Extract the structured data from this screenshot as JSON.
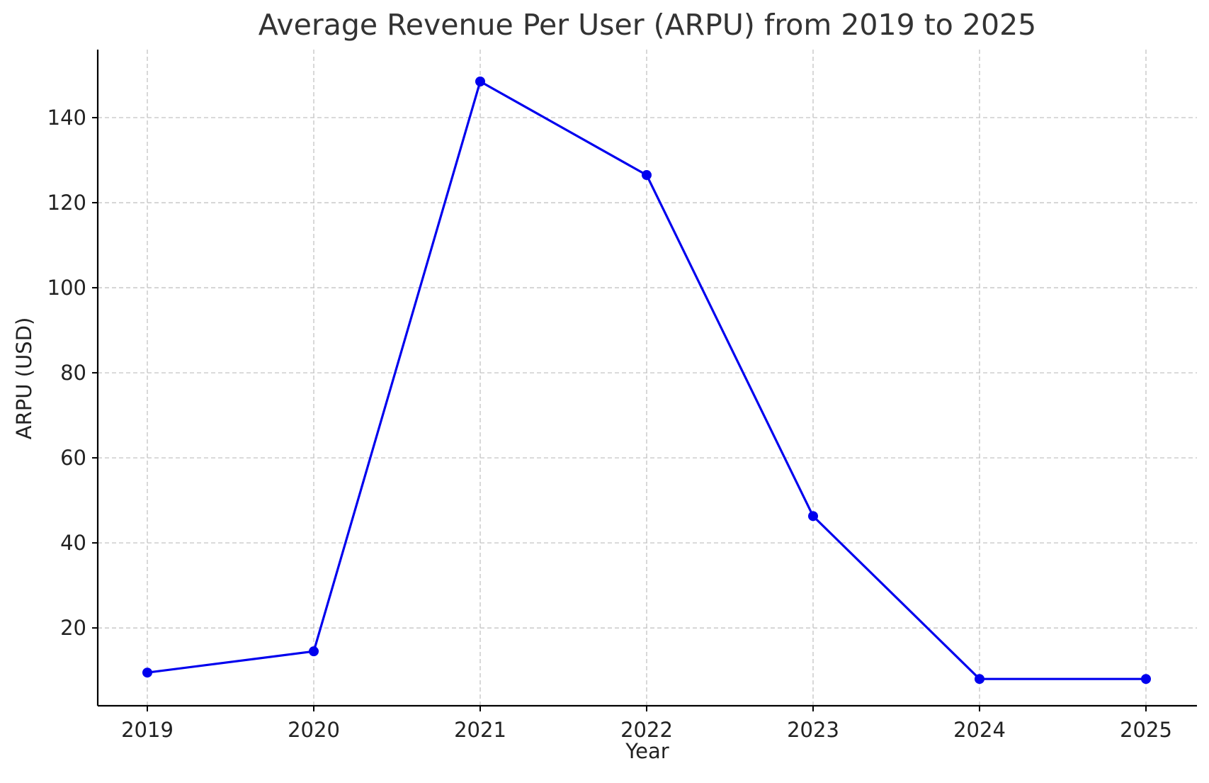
{
  "chart_data": {
    "type": "line",
    "title": "Average Revenue Per User (ARPU) from 2019 to 2025",
    "xlabel": "Year",
    "ylabel": "ARPU (USD)",
    "categories": [
      "2019",
      "2020",
      "2021",
      "2022",
      "2023",
      "2024",
      "2025"
    ],
    "series": [
      {
        "values": [
          9.5,
          14.5,
          148.5,
          126.5,
          46.3,
          8.0,
          8.0
        ],
        "color": "#0000ee",
        "marker": "circle"
      }
    ],
    "yticks": [
      20,
      40,
      60,
      80,
      100,
      120,
      140
    ],
    "ylim": [
      1.7,
      156
    ],
    "grid": true
  }
}
